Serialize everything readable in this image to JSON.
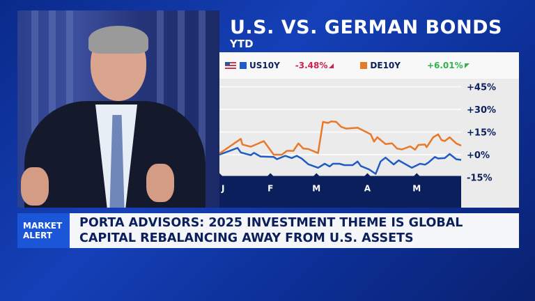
{
  "headline": {
    "title": "U.S. VS. GERMAN BONDS",
    "subtitle": "YTD"
  },
  "legend": [
    {
      "name": "US10Y",
      "change": "-3.48%",
      "color": "#1f5bc4",
      "change_color": "#d0204e",
      "icon": "us-flag-icon",
      "direction": "down"
    },
    {
      "name": "DE10Y",
      "change": "+6.01%",
      "color": "#e8782a",
      "change_color": "#2fb34a",
      "direction": "up"
    }
  ],
  "chart_data": {
    "type": "line",
    "x_ticks": [
      "J",
      "F",
      "M",
      "A",
      "M"
    ],
    "x_tick_dates": [
      "2025-01-01",
      "2025-02-01",
      "2025-03-01",
      "2025-04-01",
      "2025-05-01"
    ],
    "y_ticks": [
      "+45%",
      "+30%",
      "+15%",
      "+0%",
      "-15%"
    ],
    "y_tick_values": [
      45,
      30,
      15,
      0,
      -15
    ],
    "ylim": [
      -15,
      45
    ],
    "grid": true,
    "series": [
      {
        "name": "US10Y",
        "color": "#1f5bc4",
        "points": [
          [
            "2025-01-01",
            0
          ],
          [
            "2025-01-12",
            4.5
          ],
          [
            "2025-01-14",
            1.5
          ],
          [
            "2025-01-20",
            -0.3
          ],
          [
            "2025-01-22",
            1.2
          ],
          [
            "2025-01-26",
            -1.2
          ],
          [
            "2025-02-03",
            -1.5
          ],
          [
            "2025-02-05",
            -3.0
          ],
          [
            "2025-02-10",
            -0.75
          ],
          [
            "2025-02-14",
            -2.25
          ],
          [
            "2025-02-17",
            -0.75
          ],
          [
            "2025-02-20",
            -2.55
          ],
          [
            "2025-02-24",
            -6.3
          ],
          [
            "2025-03-02",
            -8.7
          ],
          [
            "2025-03-06",
            -6.0
          ],
          [
            "2025-03-09",
            -7.8
          ],
          [
            "2025-03-11",
            -6.0
          ],
          [
            "2025-03-15",
            -6.0
          ],
          [
            "2025-03-18",
            -6.9
          ],
          [
            "2025-03-23",
            -6.9
          ],
          [
            "2025-03-26",
            -4.5
          ],
          [
            "2025-03-28",
            -7.5
          ],
          [
            "2025-04-02",
            -9.75
          ],
          [
            "2025-04-06",
            -12.75
          ],
          [
            "2025-04-09",
            -4.5
          ],
          [
            "2025-04-12",
            -1.95
          ],
          [
            "2025-04-17",
            -6.45
          ],
          [
            "2025-04-20",
            -3.75
          ],
          [
            "2025-04-28",
            -8.7
          ],
          [
            "2025-05-03",
            -6.0
          ],
          [
            "2025-05-06",
            -6.6
          ],
          [
            "2025-05-08",
            -5.25
          ],
          [
            "2025-05-12",
            -1.5
          ],
          [
            "2025-05-14",
            -2.55
          ],
          [
            "2025-05-18",
            -2.25
          ],
          [
            "2025-05-21",
            0.45
          ],
          [
            "2025-05-25",
            -3.0
          ],
          [
            "2025-05-28",
            -3.48
          ]
        ]
      },
      {
        "name": "DE10Y",
        "color": "#e8782a",
        "points": [
          [
            "2025-01-01",
            0.75
          ],
          [
            "2025-01-14",
            10.5
          ],
          [
            "2025-01-15",
            6.75
          ],
          [
            "2025-01-20",
            5.25
          ],
          [
            "2025-01-28",
            9.0
          ],
          [
            "2025-02-01",
            3.0
          ],
          [
            "2025-02-03",
            0
          ],
          [
            "2025-02-08",
            0
          ],
          [
            "2025-02-11",
            2.55
          ],
          [
            "2025-02-15",
            2.55
          ],
          [
            "2025-02-18",
            7.5
          ],
          [
            "2025-02-21",
            4.05
          ],
          [
            "2025-02-24",
            3.75
          ],
          [
            "2025-03-02",
            1.05
          ],
          [
            "2025-03-05",
            21.75
          ],
          [
            "2025-03-08",
            21.0
          ],
          [
            "2025-03-10",
            22.05
          ],
          [
            "2025-03-13",
            21.75
          ],
          [
            "2025-03-16",
            18.45
          ],
          [
            "2025-03-19",
            17.25
          ],
          [
            "2025-03-26",
            17.85
          ],
          [
            "2025-04-03",
            13.5
          ],
          [
            "2025-04-05",
            8.7
          ],
          [
            "2025-04-07",
            11.55
          ],
          [
            "2025-04-12",
            7.05
          ],
          [
            "2025-04-16",
            7.5
          ],
          [
            "2025-04-19",
            4.05
          ],
          [
            "2025-04-22",
            3.45
          ],
          [
            "2025-04-27",
            5.55
          ],
          [
            "2025-04-30",
            3.3
          ],
          [
            "2025-05-02",
            6.45
          ],
          [
            "2025-05-06",
            6.75
          ],
          [
            "2025-05-07",
            4.95
          ],
          [
            "2025-05-11",
            11.55
          ],
          [
            "2025-05-14",
            13.5
          ],
          [
            "2025-05-16",
            9.75
          ],
          [
            "2025-05-18",
            9.0
          ],
          [
            "2025-05-21",
            11.55
          ],
          [
            "2025-05-25",
            7.5
          ],
          [
            "2025-05-28",
            6.01
          ]
        ]
      }
    ]
  },
  "banner": {
    "tag_line1": "MARKET",
    "tag_line2": "ALERT",
    "headline_line1": "PORTA ADVISORS: 2025 INVESTMENT THEME IS GLOBAL",
    "headline_line2": "CAPITAL REBALANCING AWAY FROM U.S. ASSETS",
    "tag_color": "#1b55d8"
  }
}
